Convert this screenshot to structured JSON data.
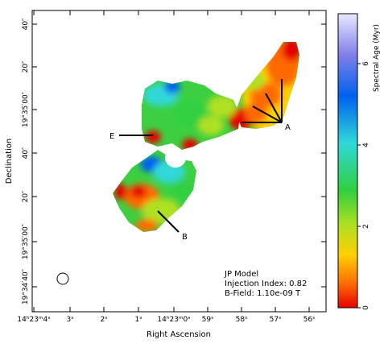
{
  "figure": {
    "xaxis_label": "Right Ascension",
    "yaxis_label": "Declination",
    "colorbar_label": "Spectral Age (Myr)",
    "colorbar_ticks": [
      "0",
      "2",
      "4",
      "6"
    ],
    "x_ticks": [
      "14ʰ23ᵐ4ˢ",
      "3ˢ",
      "2ˢ",
      "1ˢ",
      "14ʰ23ᵐ0ˢ",
      "59ˢ",
      "58ˢ",
      "57ˢ",
      "56ˢ"
    ],
    "y_ticks": [
      "40″",
      "20″",
      "19°35′00″",
      "40″",
      "20″",
      "19°35′00″",
      "19°34′40″"
    ],
    "annotations": {
      "model": "JP Model",
      "injection": "Injection Index: 0.82",
      "bfield": "B-Field: 1.10e-09 T",
      "label_a": "A",
      "label_b": "B",
      "label_e": "E"
    },
    "colormap": [
      "#e60000",
      "#ff6a00",
      "#ffd000",
      "#b0e020",
      "#30d040",
      "#30d8d8",
      "#0060f0",
      "#8080e8",
      "#e8e8ff"
    ],
    "colorbar_range": [
      0,
      7.2
    ]
  }
}
